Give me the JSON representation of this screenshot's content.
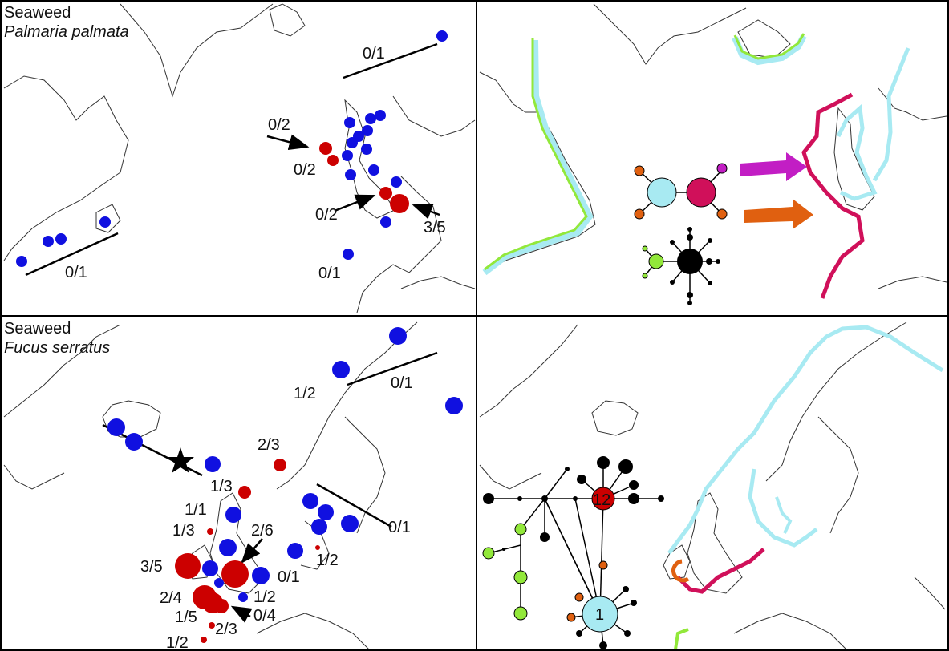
{
  "colors": {
    "blue": "#1010e0",
    "red": "#cc0000",
    "cyan": "#a8eaf2",
    "lime": "#92e83a",
    "crimson": "#d0105a",
    "magenta": "#c21ec4",
    "orange": "#e06010",
    "black": "#000000"
  },
  "panels": {
    "top_left": {
      "group": "Seaweed",
      "species": "Palmaria palmata",
      "ratios": [
        "0/1",
        "0/2",
        "0/2",
        "0/2",
        "3/5",
        "0/1",
        "0/1"
      ]
    },
    "bottom_left": {
      "group": "Seaweed",
      "species": "Fucus serratus",
      "ratios": [
        "1/2",
        "0/1",
        "2/3",
        "1/3",
        "1/1",
        "1/3",
        "2/6",
        "3/5",
        "0/1",
        "1/2",
        "2/4",
        "1/2",
        "0/4",
        "1/5",
        "2/3",
        "1/2",
        "0/1"
      ]
    },
    "bottom_right": {
      "network_labels": [
        "12",
        "1"
      ]
    }
  },
  "icons": [
    "star-icon",
    "arrow-icon"
  ]
}
